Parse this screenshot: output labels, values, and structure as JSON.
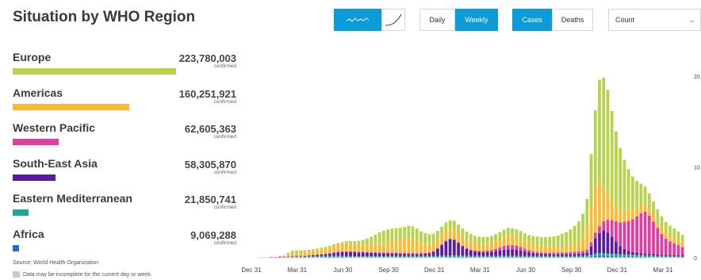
{
  "page_title": "Situation by WHO Region",
  "toggles": {
    "chart_type": [
      {
        "id": "line",
        "icon": "trend-line-icon",
        "active": true
      },
      {
        "id": "curve",
        "icon": "cumulative-curve-icon",
        "active": false
      }
    ],
    "period": [
      {
        "label": "Daily",
        "active": false
      },
      {
        "label": "Weekly",
        "active": true
      }
    ],
    "measure": [
      {
        "label": "Cases",
        "active": true
      },
      {
        "label": "Deaths",
        "active": false
      }
    ],
    "scale_select": {
      "value": "Count"
    }
  },
  "regions": [
    {
      "name": "Europe",
      "count": "223,780,003",
      "sub": "confirmed",
      "color": "#b6d34c",
      "share": 1.0
    },
    {
      "name": "Americas",
      "count": "160,251,921",
      "sub": "confirmed",
      "color": "#fdb92f",
      "share": 0.716
    },
    {
      "name": "Western Pacific",
      "count": "62,605,363",
      "sub": "confirmed",
      "color": "#e33ba0",
      "share": 0.28
    },
    {
      "name": "South-East Asia",
      "count": "58,305,870",
      "sub": "confirmed",
      "color": "#5b1b9e",
      "share": 0.26
    },
    {
      "name": "Eastern Mediterranean",
      "count": "21,850,741",
      "sub": "confirmed",
      "color": "#1aa89b",
      "share": 0.098
    },
    {
      "name": "Africa",
      "count": "9,069,288",
      "sub": "confirmed",
      "color": "#1b6ed6",
      "share": 0.04
    }
  ],
  "footer": {
    "source": "Source: World Health Organization",
    "note": "Data may be incomplete for the current day or week."
  },
  "chart_data": {
    "type": "bar",
    "stacked": true,
    "x_tick_labels": [
      "Dec 31",
      "Mar 31",
      "Jun 30",
      "Sep 30",
      "Dec 31",
      "Mar 31",
      "Jun 30",
      "Sep 30",
      "Dec 31",
      "Mar 31"
    ],
    "y_tick_labels": [
      "0",
      "10",
      "20"
    ],
    "ylim": [
      0,
      24
    ],
    "series_order": [
      "Africa",
      "Eastern Mediterranean",
      "South-East Asia",
      "Western Pacific",
      "Americas",
      "Europe"
    ],
    "weeks": [
      [
        0,
        0,
        0,
        0,
        0,
        0
      ],
      [
        0,
        0,
        0,
        0.05,
        0,
        0
      ],
      [
        0,
        0,
        0,
        0.05,
        0,
        0
      ],
      [
        0,
        0,
        0,
        0.1,
        0,
        0
      ],
      [
        0,
        0,
        0,
        0.1,
        0,
        0
      ],
      [
        0,
        0,
        0,
        0.15,
        0,
        0.05
      ],
      [
        0,
        0.02,
        0,
        0.1,
        0.02,
        0.1
      ],
      [
        0,
        0.05,
        0,
        0.1,
        0.1,
        0.3
      ],
      [
        0,
        0.08,
        0.02,
        0.1,
        0.2,
        0.4
      ],
      [
        0.02,
        0.1,
        0.02,
        0.08,
        0.25,
        0.35
      ],
      [
        0.02,
        0.1,
        0.03,
        0.06,
        0.3,
        0.3
      ],
      [
        0.03,
        0.1,
        0.05,
        0.05,
        0.35,
        0.25
      ],
      [
        0.05,
        0.1,
        0.07,
        0.05,
        0.4,
        0.2
      ],
      [
        0.05,
        0.11,
        0.1,
        0.05,
        0.45,
        0.18
      ],
      [
        0.06,
        0.12,
        0.13,
        0.05,
        0.5,
        0.15
      ],
      [
        0.07,
        0.12,
        0.17,
        0.05,
        0.55,
        0.15
      ],
      [
        0.08,
        0.12,
        0.2,
        0.06,
        0.6,
        0.15
      ],
      [
        0.09,
        0.12,
        0.25,
        0.06,
        0.65,
        0.16
      ],
      [
        0.1,
        0.12,
        0.3,
        0.07,
        0.7,
        0.18
      ],
      [
        0.1,
        0.12,
        0.37,
        0.08,
        0.75,
        0.2
      ],
      [
        0.09,
        0.11,
        0.42,
        0.08,
        0.8,
        0.22
      ],
      [
        0.08,
        0.11,
        0.45,
        0.08,
        0.85,
        0.25
      ],
      [
        0.07,
        0.1,
        0.45,
        0.08,
        0.85,
        0.28
      ],
      [
        0.06,
        0.1,
        0.45,
        0.08,
        0.8,
        0.33
      ],
      [
        0.05,
        0.1,
        0.43,
        0.08,
        0.8,
        0.4
      ],
      [
        0.05,
        0.1,
        0.42,
        0.08,
        0.8,
        0.5
      ],
      [
        0.05,
        0.11,
        0.4,
        0.08,
        0.82,
        0.65
      ],
      [
        0.05,
        0.12,
        0.37,
        0.08,
        0.85,
        0.85
      ],
      [
        0.05,
        0.13,
        0.35,
        0.08,
        0.9,
        1.05
      ],
      [
        0.05,
        0.13,
        0.33,
        0.08,
        0.95,
        1.25
      ],
      [
        0.05,
        0.12,
        0.32,
        0.08,
        1.05,
        1.35
      ],
      [
        0.06,
        0.12,
        0.3,
        0.09,
        1.15,
        1.4
      ],
      [
        0.07,
        0.12,
        0.28,
        0.09,
        1.25,
        1.4
      ],
      [
        0.08,
        0.12,
        0.27,
        0.1,
        1.35,
        1.35
      ],
      [
        0.08,
        0.12,
        0.25,
        0.1,
        1.45,
        1.3
      ],
      [
        0.08,
        0.12,
        0.23,
        0.1,
        1.55,
        1.3
      ],
      [
        0.08,
        0.12,
        0.22,
        0.1,
        1.65,
        1.35
      ],
      [
        0.08,
        0.12,
        0.22,
        0.1,
        1.55,
        1.4
      ],
      [
        0.07,
        0.12,
        0.22,
        0.1,
        1.35,
        1.35
      ],
      [
        0.07,
        0.12,
        0.23,
        0.1,
        1.15,
        1.25
      ],
      [
        0.07,
        0.13,
        0.25,
        0.1,
        1.0,
        1.15
      ],
      [
        0.07,
        0.13,
        0.3,
        0.1,
        0.95,
        1.05
      ],
      [
        0.07,
        0.14,
        0.45,
        0.1,
        0.95,
        0.95
      ],
      [
        0.07,
        0.15,
        0.75,
        0.1,
        1.0,
        0.9
      ],
      [
        0.07,
        0.16,
        1.15,
        0.1,
        1.05,
        0.9
      ],
      [
        0.08,
        0.17,
        1.55,
        0.1,
        1.1,
        0.9
      ],
      [
        0.09,
        0.17,
        1.75,
        0.1,
        1.1,
        0.9
      ],
      [
        0.1,
        0.17,
        1.65,
        0.1,
        1.1,
        0.95
      ],
      [
        0.1,
        0.16,
        1.35,
        0.1,
        1.0,
        0.95
      ],
      [
        0.1,
        0.15,
        1.0,
        0.1,
        0.95,
        0.95
      ],
      [
        0.09,
        0.14,
        0.75,
        0.1,
        0.9,
        0.9
      ],
      [
        0.08,
        0.13,
        0.6,
        0.1,
        0.85,
        0.85
      ],
      [
        0.08,
        0.12,
        0.5,
        0.11,
        0.8,
        0.8
      ],
      [
        0.08,
        0.12,
        0.45,
        0.12,
        0.8,
        0.75
      ],
      [
        0.08,
        0.12,
        0.42,
        0.14,
        0.8,
        0.72
      ],
      [
        0.08,
        0.12,
        0.42,
        0.17,
        0.82,
        0.7
      ],
      [
        0.08,
        0.12,
        0.45,
        0.2,
        0.85,
        0.7
      ],
      [
        0.09,
        0.12,
        0.52,
        0.25,
        0.9,
        0.72
      ],
      [
        0.1,
        0.12,
        0.6,
        0.32,
        0.95,
        0.75
      ],
      [
        0.1,
        0.12,
        0.68,
        0.4,
        1.0,
        0.8
      ],
      [
        0.1,
        0.12,
        0.72,
        0.45,
        1.05,
        0.85
      ],
      [
        0.1,
        0.12,
        0.72,
        0.45,
        1.0,
        0.85
      ],
      [
        0.09,
        0.12,
        0.68,
        0.42,
        0.95,
        0.85
      ],
      [
        0.09,
        0.12,
        0.6,
        0.38,
        0.9,
        0.85
      ],
      [
        0.09,
        0.11,
        0.5,
        0.3,
        0.85,
        0.85
      ],
      [
        0.08,
        0.11,
        0.4,
        0.25,
        0.8,
        0.85
      ],
      [
        0.08,
        0.11,
        0.32,
        0.2,
        0.8,
        0.9
      ],
      [
        0.08,
        0.11,
        0.28,
        0.17,
        0.78,
        0.92
      ],
      [
        0.08,
        0.11,
        0.25,
        0.15,
        0.75,
        0.95
      ],
      [
        0.08,
        0.11,
        0.23,
        0.14,
        0.72,
        1.0
      ],
      [
        0.08,
        0.11,
        0.22,
        0.14,
        0.7,
        1.05
      ],
      [
        0.08,
        0.11,
        0.22,
        0.15,
        0.68,
        1.1
      ],
      [
        0.08,
        0.11,
        0.22,
        0.16,
        0.68,
        1.2
      ],
      [
        0.08,
        0.11,
        0.22,
        0.17,
        0.7,
        1.35
      ],
      [
        0.08,
        0.11,
        0.22,
        0.18,
        0.75,
        1.5
      ],
      [
        0.08,
        0.11,
        0.22,
        0.2,
        0.8,
        1.7
      ],
      [
        0.08,
        0.12,
        0.23,
        0.22,
        0.9,
        1.95
      ],
      [
        0.08,
        0.12,
        0.24,
        0.25,
        1.1,
        2.2
      ],
      [
        0.08,
        0.13,
        0.26,
        0.28,
        1.6,
        2.5
      ],
      [
        0.1,
        0.15,
        0.3,
        0.32,
        2.6,
        3.0
      ],
      [
        0.15,
        0.2,
        0.9,
        0.45,
        4.2,
        5.5
      ],
      [
        0.2,
        0.25,
        1.7,
        0.6,
        5.0,
        8.5
      ],
      [
        0.22,
        0.3,
        2.2,
        0.75,
        4.8,
        11.3
      ],
      [
        0.22,
        0.3,
        2.5,
        1.0,
        3.8,
        12.0
      ],
      [
        0.2,
        0.28,
        2.3,
        1.4,
        2.8,
        11.5
      ],
      [
        0.18,
        0.26,
        1.9,
        1.8,
        2.0,
        10.0
      ],
      [
        0.16,
        0.25,
        1.4,
        2.2,
        1.6,
        8.3
      ],
      [
        0.15,
        0.24,
        0.9,
        2.6,
        1.4,
        6.8
      ],
      [
        0.14,
        0.23,
        0.6,
        3.0,
        1.3,
        5.5
      ],
      [
        0.13,
        0.22,
        0.4,
        3.3,
        1.2,
        4.5
      ],
      [
        0.12,
        0.21,
        0.3,
        3.6,
        1.1,
        3.6
      ],
      [
        0.11,
        0.2,
        0.25,
        4.0,
        1.0,
        2.9
      ],
      [
        0.1,
        0.19,
        0.22,
        4.4,
        0.95,
        2.3
      ],
      [
        0.09,
        0.18,
        0.2,
        4.6,
        0.9,
        1.9
      ],
      [
        0.08,
        0.17,
        0.18,
        4.2,
        0.85,
        1.6
      ],
      [
        0.07,
        0.16,
        0.16,
        3.6,
        0.8,
        1.4
      ],
      [
        0.07,
        0.15,
        0.15,
        2.9,
        0.75,
        1.3
      ],
      [
        0.06,
        0.14,
        0.14,
        2.3,
        0.72,
        1.2
      ],
      [
        0.06,
        0.13,
        0.13,
        1.8,
        0.7,
        1.1
      ],
      [
        0.05,
        0.13,
        0.12,
        1.5,
        0.68,
        1.05
      ],
      [
        0.05,
        0.12,
        0.12,
        1.3,
        0.65,
        1.0
      ],
      [
        0.05,
        0.12,
        0.12,
        1.1,
        0.6,
        0.9
      ],
      [
        0.05,
        0.11,
        0.11,
        0.9,
        0.55,
        0.8
      ]
    ]
  }
}
